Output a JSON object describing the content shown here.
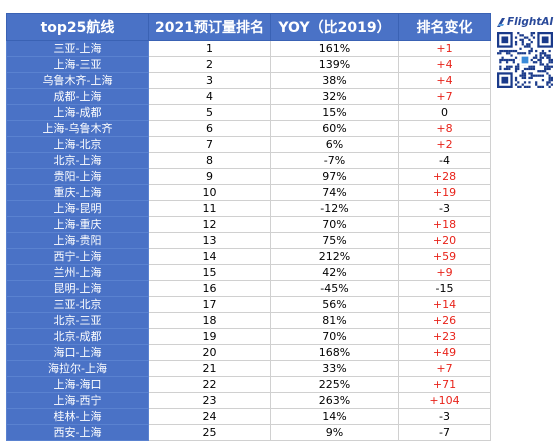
{
  "table": {
    "headers": [
      "top25航线",
      "2021预订量排名",
      "YOY（比2019）",
      "排名变化"
    ]
  },
  "chart_data": {
    "type": "table",
    "columns": [
      "top25航线",
      "2021预订量排名",
      "YOY（比2019）",
      "排名变化"
    ],
    "rows": [
      [
        "三亚-上海",
        "1",
        "161%",
        "+1"
      ],
      [
        "上海-三亚",
        "2",
        "139%",
        "+4"
      ],
      [
        "乌鲁木齐-上海",
        "3",
        "38%",
        "+4"
      ],
      [
        "成都-上海",
        "4",
        "32%",
        "+7"
      ],
      [
        "上海-成都",
        "5",
        "15%",
        "0"
      ],
      [
        "上海-乌鲁木齐",
        "6",
        "60%",
        "+8"
      ],
      [
        "上海-北京",
        "7",
        "6%",
        "+2"
      ],
      [
        "北京-上海",
        "8",
        "-7%",
        "-4"
      ],
      [
        "贵阳-上海",
        "9",
        "97%",
        "+28"
      ],
      [
        "重庆-上海",
        "10",
        "74%",
        "+19"
      ],
      [
        "上海-昆明",
        "11",
        "-12%",
        "-3"
      ],
      [
        "上海-重庆",
        "12",
        "70%",
        "+18"
      ],
      [
        "上海-贵阳",
        "13",
        "75%",
        "+20"
      ],
      [
        "西宁-上海",
        "14",
        "212%",
        "+59"
      ],
      [
        "兰州-上海",
        "15",
        "42%",
        "+9"
      ],
      [
        "昆明-上海",
        "16",
        "-45%",
        "-15"
      ],
      [
        "三亚-北京",
        "17",
        "56%",
        "+14"
      ],
      [
        "北京-三亚",
        "18",
        "81%",
        "+26"
      ],
      [
        "北京-成都",
        "19",
        "70%",
        "+23"
      ],
      [
        "海口-上海",
        "20",
        "168%",
        "+49"
      ],
      [
        "海拉尔-上海",
        "21",
        "33%",
        "+7"
      ],
      [
        "上海-海口",
        "22",
        "225%",
        "+71"
      ],
      [
        "上海-西宁",
        "23",
        "263%",
        "+104"
      ],
      [
        "桂林-上海",
        "24",
        "14%",
        "-3"
      ],
      [
        "西安-上海",
        "25",
        "9%",
        "-7"
      ]
    ]
  },
  "brand": {
    "logo_text": "FlightAI",
    "logo_icon": "flightai-logo-icon",
    "qr_icon": "qr-code-icon"
  },
  "colors": {
    "header_bg": "#4a72c6",
    "route_bg": "#4a72c6",
    "positive_change": "#e8231a",
    "logo_color": "#2a4a9a"
  }
}
